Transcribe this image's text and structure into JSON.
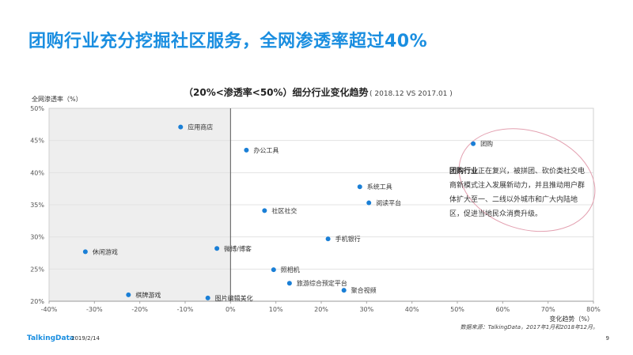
{
  "page_title": "团购行业充分挖掘社区服务，全网渗透率超过40%",
  "footer": {
    "brand": "TalkingData",
    "date": "2019/2/14",
    "page_number": "9"
  },
  "source_note": "数据来源：TalkingData，2017年1月和2018年12月。",
  "callout": {
    "bold": "团购行业",
    "text": "正在复兴，被拼团、砍价类社交电商新模式注入发展新动力，并且推动用户群体扩大至一、二线以外城市和广大内陆地区，促进当地民众消费升级。"
  },
  "chart_data": {
    "type": "scatter",
    "title": "（20%<渗透率<50%）细分行业变化趋势",
    "subtitle": "( 2018.12 VS 2017.01 )",
    "xlabel": "变化趋势（%）",
    "ylabel": "全网渗透率（%）",
    "xlim": [
      -40,
      80
    ],
    "ylim": [
      20,
      50
    ],
    "x_ticks": [
      "-40%",
      "-30%",
      "-20%",
      "-10%",
      "0%",
      "10%",
      "20%",
      "30%",
      "40%",
      "50%",
      "60%",
      "70%",
      "80%"
    ],
    "y_ticks": [
      "20%",
      "25%",
      "30%",
      "35%",
      "40%",
      "45%",
      "50%"
    ],
    "point_color": "#1a7fd6",
    "shaded_region": "x<0",
    "points": [
      {
        "label": "应用商店",
        "x": -11,
        "y": 47.1
      },
      {
        "label": "办公工具",
        "x": 3.5,
        "y": 43.5
      },
      {
        "label": "团购",
        "x": 53.5,
        "y": 44.5
      },
      {
        "label": "系统工具",
        "x": 28.5,
        "y": 37.8
      },
      {
        "label": "阅读平台",
        "x": 30.5,
        "y": 35.3
      },
      {
        "label": "社区社交",
        "x": 7.5,
        "y": 34.1
      },
      {
        "label": "手机银行",
        "x": 21.5,
        "y": 29.7
      },
      {
        "label": "休闲游戏",
        "x": -32,
        "y": 27.7
      },
      {
        "label": "微博/博客",
        "x": -3,
        "y": 28.2
      },
      {
        "label": "照相机",
        "x": 9.5,
        "y": 24.9
      },
      {
        "label": "旅游综合预定平台",
        "x": 13,
        "y": 22.8
      },
      {
        "label": "聚合视频",
        "x": 25,
        "y": 21.7
      },
      {
        "label": "棋牌游戏",
        "x": -22.5,
        "y": 21
      },
      {
        "label": "图片编辑美化",
        "x": -5,
        "y": 20.5
      }
    ]
  }
}
